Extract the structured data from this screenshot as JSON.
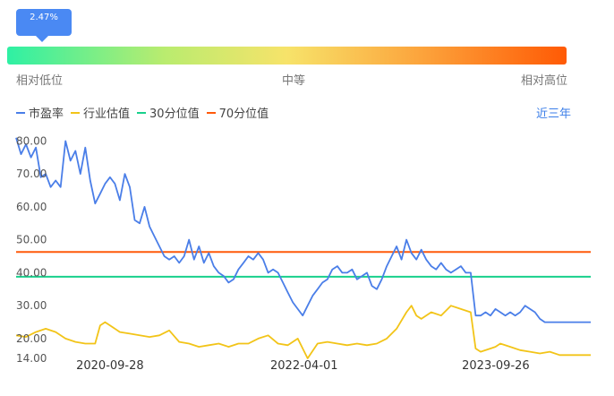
{
  "percentile": {
    "tooltip_value": "2.47%",
    "low_label": "相对低位",
    "mid_label": "中等",
    "high_label": "相对高位"
  },
  "legend": {
    "pe": "市盈率",
    "industry": "行业估值",
    "p30": "30分位值",
    "p70": "70分位值"
  },
  "range_label": "近三年",
  "chart_data": {
    "type": "line",
    "title": "",
    "xlabel": "",
    "ylabel": "",
    "x_ticks": [
      "2020-09-28",
      "2022-04-01",
      "2023-09-26"
    ],
    "y_ticks": [
      "80.00",
      "70.00",
      "60.00",
      "50.00",
      "40.00",
      "30.00",
      "20.00",
      "14.00"
    ],
    "ylim": [
      14,
      82
    ],
    "grid": false,
    "legend_position": "top-left",
    "x_range": [
      "2020-01-06",
      "2024-06-21"
    ],
    "reference_lines": [
      {
        "name": "30分位值",
        "value": 38.8,
        "color": "#18d08c"
      },
      {
        "name": "70分位值",
        "value": 46.3,
        "color": "#ff5a0a"
      }
    ],
    "series": [
      {
        "name": "市盈率",
        "color": "#4a7ee8",
        "points": [
          [
            "2020-01-06",
            81
          ],
          [
            "2020-01-20",
            76
          ],
          [
            "2020-02-03",
            79
          ],
          [
            "2020-02-17",
            75
          ],
          [
            "2020-03-02",
            78
          ],
          [
            "2020-03-16",
            69
          ],
          [
            "2020-03-30",
            70
          ],
          [
            "2020-04-13",
            66
          ],
          [
            "2020-04-27",
            68
          ],
          [
            "2020-05-11",
            66
          ],
          [
            "2020-05-25",
            80
          ],
          [
            "2020-06-08",
            74
          ],
          [
            "2020-06-22",
            77
          ],
          [
            "2020-07-06",
            70
          ],
          [
            "2020-07-20",
            78
          ],
          [
            "2020-08-03",
            68
          ],
          [
            "2020-08-17",
            61
          ],
          [
            "2020-08-31",
            64
          ],
          [
            "2020-09-14",
            67
          ],
          [
            "2020-09-28",
            69
          ],
          [
            "2020-10-12",
            67
          ],
          [
            "2020-10-26",
            62
          ],
          [
            "2020-11-09",
            70
          ],
          [
            "2020-11-23",
            66
          ],
          [
            "2020-12-07",
            56
          ],
          [
            "2020-12-21",
            55
          ],
          [
            "2021-01-04",
            60
          ],
          [
            "2021-01-18",
            54
          ],
          [
            "2021-02-01",
            51
          ],
          [
            "2021-02-15",
            48
          ],
          [
            "2021-03-01",
            45
          ],
          [
            "2021-03-15",
            44
          ],
          [
            "2021-03-29",
            45
          ],
          [
            "2021-04-12",
            43
          ],
          [
            "2021-04-26",
            45
          ],
          [
            "2021-05-10",
            50
          ],
          [
            "2021-05-24",
            44
          ],
          [
            "2021-06-07",
            48
          ],
          [
            "2021-06-21",
            43
          ],
          [
            "2021-07-05",
            46
          ],
          [
            "2021-07-19",
            42
          ],
          [
            "2021-08-02",
            40
          ],
          [
            "2021-08-16",
            39
          ],
          [
            "2021-08-30",
            37
          ],
          [
            "2021-09-13",
            38
          ],
          [
            "2021-09-27",
            41
          ],
          [
            "2021-10-11",
            43
          ],
          [
            "2021-10-25",
            45
          ],
          [
            "2021-11-08",
            44
          ],
          [
            "2021-11-22",
            46
          ],
          [
            "2021-12-06",
            44
          ],
          [
            "2021-12-20",
            40
          ],
          [
            "2022-01-03",
            41
          ],
          [
            "2022-01-17",
            40
          ],
          [
            "2022-01-31",
            37
          ],
          [
            "2022-02-14",
            34
          ],
          [
            "2022-02-28",
            31
          ],
          [
            "2022-03-14",
            29
          ],
          [
            "2022-03-28",
            27
          ],
          [
            "2022-04-11",
            30
          ],
          [
            "2022-04-25",
            33
          ],
          [
            "2022-05-09",
            35
          ],
          [
            "2022-05-23",
            37
          ],
          [
            "2022-06-06",
            38
          ],
          [
            "2022-06-20",
            41
          ],
          [
            "2022-07-04",
            42
          ],
          [
            "2022-07-18",
            40
          ],
          [
            "2022-08-01",
            40
          ],
          [
            "2022-08-15",
            41
          ],
          [
            "2022-08-29",
            38
          ],
          [
            "2022-09-12",
            39
          ],
          [
            "2022-09-26",
            40
          ],
          [
            "2022-10-10",
            36
          ],
          [
            "2022-10-24",
            35
          ],
          [
            "2022-11-07",
            38
          ],
          [
            "2022-11-21",
            42
          ],
          [
            "2022-12-05",
            45
          ],
          [
            "2022-12-19",
            48
          ],
          [
            "2023-01-02",
            44
          ],
          [
            "2023-01-16",
            50
          ],
          [
            "2023-01-30",
            46
          ],
          [
            "2023-02-13",
            44
          ],
          [
            "2023-02-27",
            47
          ],
          [
            "2023-03-13",
            44
          ],
          [
            "2023-03-27",
            42
          ],
          [
            "2023-04-10",
            41
          ],
          [
            "2023-04-24",
            43
          ],
          [
            "2023-05-08",
            41
          ],
          [
            "2023-05-22",
            40
          ],
          [
            "2023-06-05",
            41
          ],
          [
            "2023-06-19",
            42
          ],
          [
            "2023-07-03",
            40
          ],
          [
            "2023-07-17",
            40
          ],
          [
            "2023-07-31",
            27
          ],
          [
            "2023-08-14",
            27
          ],
          [
            "2023-08-28",
            28
          ],
          [
            "2023-09-11",
            27
          ],
          [
            "2023-09-25",
            29
          ],
          [
            "2023-10-09",
            28
          ],
          [
            "2023-10-23",
            27
          ],
          [
            "2023-11-06",
            28
          ],
          [
            "2023-11-20",
            27
          ],
          [
            "2023-12-04",
            28
          ],
          [
            "2023-12-18",
            30
          ],
          [
            "2024-01-01",
            29
          ],
          [
            "2024-01-15",
            28
          ],
          [
            "2024-01-29",
            26
          ],
          [
            "2024-02-12",
            25
          ],
          [
            "2024-02-26",
            25
          ],
          [
            "2024-03-11",
            25
          ],
          [
            "2024-06-21",
            25
          ]
        ]
      },
      {
        "name": "行业估值",
        "color": "#f2c418",
        "points": [
          [
            "2020-01-06",
            21
          ],
          [
            "2020-02-03",
            20.5
          ],
          [
            "2020-03-02",
            22
          ],
          [
            "2020-03-30",
            23
          ],
          [
            "2020-04-27",
            22
          ],
          [
            "2020-05-25",
            20
          ],
          [
            "2020-06-22",
            19
          ],
          [
            "2020-07-20",
            18.5
          ],
          [
            "2020-08-17",
            18.5
          ],
          [
            "2020-08-31",
            24
          ],
          [
            "2020-09-14",
            25
          ],
          [
            "2020-09-28",
            24
          ],
          [
            "2020-10-26",
            22
          ],
          [
            "2020-11-23",
            21.5
          ],
          [
            "2020-12-21",
            21
          ],
          [
            "2021-01-18",
            20.5
          ],
          [
            "2021-02-15",
            21
          ],
          [
            "2021-03-15",
            22.5
          ],
          [
            "2021-04-12",
            19
          ],
          [
            "2021-05-10",
            18.5
          ],
          [
            "2021-06-07",
            17.5
          ],
          [
            "2021-07-05",
            18
          ],
          [
            "2021-08-02",
            18.5
          ],
          [
            "2021-08-30",
            17.5
          ],
          [
            "2021-09-27",
            18.5
          ],
          [
            "2021-10-25",
            18.5
          ],
          [
            "2021-11-22",
            20
          ],
          [
            "2021-12-20",
            21
          ],
          [
            "2022-01-17",
            18.5
          ],
          [
            "2022-02-14",
            18
          ],
          [
            "2022-03-14",
            20
          ],
          [
            "2022-04-11",
            14
          ],
          [
            "2022-05-09",
            18.5
          ],
          [
            "2022-06-06",
            19
          ],
          [
            "2022-07-04",
            18.5
          ],
          [
            "2022-08-01",
            18
          ],
          [
            "2022-08-29",
            18.5
          ],
          [
            "2022-09-26",
            18
          ],
          [
            "2022-10-24",
            18.5
          ],
          [
            "2022-11-21",
            20
          ],
          [
            "2022-12-19",
            23
          ],
          [
            "2023-01-16",
            28
          ],
          [
            "2023-01-30",
            30
          ],
          [
            "2023-02-13",
            27
          ],
          [
            "2023-02-27",
            26
          ],
          [
            "2023-03-27",
            28
          ],
          [
            "2023-04-24",
            27
          ],
          [
            "2023-05-22",
            30
          ],
          [
            "2023-06-19",
            29
          ],
          [
            "2023-07-17",
            28
          ],
          [
            "2023-07-31",
            17
          ],
          [
            "2023-08-14",
            16
          ],
          [
            "2023-09-11",
            17
          ],
          [
            "2023-09-25",
            17.5
          ],
          [
            "2023-10-09",
            18.5
          ],
          [
            "2023-11-06",
            17.5
          ],
          [
            "2023-12-04",
            16.5
          ],
          [
            "2024-01-01",
            16
          ],
          [
            "2024-01-29",
            15.5
          ],
          [
            "2024-02-26",
            16
          ],
          [
            "2024-03-25",
            15
          ],
          [
            "2024-06-21",
            15
          ]
        ]
      }
    ]
  }
}
